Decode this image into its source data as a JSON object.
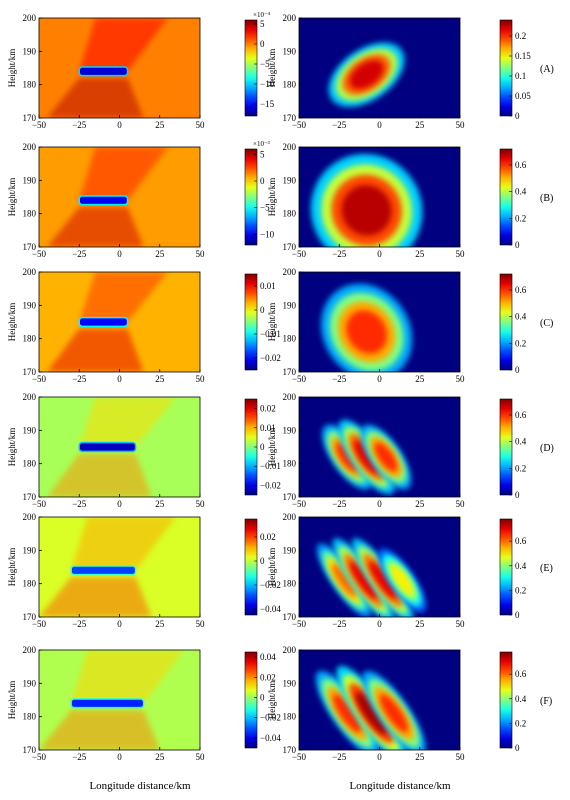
{
  "figure": {
    "x_label": "Longitude distance/km",
    "y_label": "Height/km"
  },
  "chart_data": [
    {
      "type": "heatmap",
      "id": "A-left",
      "row_label": "",
      "xlim": [
        -50,
        50
      ],
      "ylim": [
        170,
        200
      ],
      "x_ticks": [
        "−50",
        "−25",
        "0",
        "25",
        "50"
      ],
      "y_ticks": [
        "170",
        "180",
        "190",
        "200"
      ],
      "colorbar": {
        "exponent": "×10⁻⁴",
        "ticks": [
          "5",
          "0",
          "−5",
          "−10",
          "−15"
        ],
        "min": -18,
        "max": 6
      },
      "field": "slab",
      "background": 0,
      "slab": {
        "x0": -25,
        "x1": 5,
        "y": 184,
        "value": -16
      },
      "stripes": []
    },
    {
      "type": "heatmap",
      "id": "A-right",
      "row_label": "(A)",
      "xlim": [
        -50,
        50
      ],
      "ylim": [
        170,
        200
      ],
      "x_ticks": [
        "−50",
        "−25",
        "0",
        "25",
        "50"
      ],
      "y_ticks": [
        "170",
        "180",
        "190",
        "200"
      ],
      "colorbar": {
        "exponent": "",
        "ticks": [
          "0.2",
          "0.15",
          "0.1",
          "0.05",
          "0"
        ],
        "min": 0,
        "max": 0.24
      },
      "field": "blobs",
      "background": 0,
      "blobs": [
        {
          "x": -8,
          "y": 183,
          "value": 0.22,
          "rx": 14,
          "ry": 4
        }
      ]
    },
    {
      "type": "heatmap",
      "id": "B-left",
      "row_label": "",
      "xlim": [
        -50,
        50
      ],
      "ylim": [
        170,
        200
      ],
      "x_ticks": [
        "−50",
        "−25",
        "0",
        "25",
        "50"
      ],
      "y_ticks": [
        "170",
        "180",
        "190",
        "200"
      ],
      "colorbar": {
        "exponent": "×10⁻³",
        "ticks": [
          "5",
          "0",
          "−5",
          "−10"
        ],
        "min": -12,
        "max": 6
      },
      "field": "slab",
      "background": 1,
      "slab": {
        "x0": -25,
        "x1": 5,
        "y": 184,
        "value": -10
      },
      "stripes": []
    },
    {
      "type": "heatmap",
      "id": "B-right",
      "row_label": "(B)",
      "xlim": [
        -50,
        50
      ],
      "ylim": [
        170,
        200
      ],
      "x_ticks": [
        "−50",
        "−25",
        "0",
        "25",
        "50"
      ],
      "y_ticks": [
        "170",
        "180",
        "190",
        "200"
      ],
      "colorbar": {
        "exponent": "",
        "ticks": [
          "0.6",
          "0.4",
          "0.2",
          "0"
        ],
        "min": 0,
        "max": 0.72
      },
      "field": "blobs",
      "background": 0,
      "blobs": [
        {
          "x": -8,
          "y": 181,
          "value": 0.68,
          "rx": 18,
          "ry": 9
        }
      ]
    },
    {
      "type": "heatmap",
      "id": "C-left",
      "row_label": "",
      "xlim": [
        -50,
        50
      ],
      "ylim": [
        170,
        200
      ],
      "x_ticks": [
        "−50",
        "−25",
        "0",
        "25",
        "50"
      ],
      "y_ticks": [
        "170",
        "180",
        "190",
        "200"
      ],
      "colorbar": {
        "exponent": "",
        "ticks": [
          "0.01",
          "0",
          "−0.01",
          "−0.02"
        ],
        "min": -0.025,
        "max": 0.015
      },
      "field": "slab",
      "background": 0.003,
      "slab": {
        "x0": -25,
        "x1": 5,
        "y": 185,
        "value": -0.02
      },
      "stripes": []
    },
    {
      "type": "heatmap",
      "id": "C-right",
      "row_label": "(C)",
      "xlim": [
        -50,
        50
      ],
      "ylim": [
        170,
        200
      ],
      "x_ticks": [
        "−50",
        "−25",
        "0",
        "25",
        "50"
      ],
      "y_ticks": [
        "170",
        "180",
        "190",
        "200"
      ],
      "colorbar": {
        "exponent": "",
        "ticks": [
          "0.6",
          "0.4",
          "0.2",
          "0"
        ],
        "min": 0,
        "max": 0.72
      },
      "field": "blobs",
      "background": 0,
      "blobs": [
        {
          "x": -8,
          "y": 182,
          "value": 0.6,
          "rx": 14,
          "ry": 8
        }
      ]
    },
    {
      "type": "heatmap",
      "id": "D-left",
      "row_label": "",
      "xlim": [
        -50,
        50
      ],
      "ylim": [
        170,
        200
      ],
      "x_ticks": [
        "−50",
        "−25",
        "0",
        "25",
        "50"
      ],
      "y_ticks": [
        "170",
        "180",
        "190",
        "200"
      ],
      "colorbar": {
        "exponent": "",
        "ticks": [
          "0.02",
          "0.01",
          "0",
          "−0.01",
          "−0.02"
        ],
        "min": -0.025,
        "max": 0.025
      },
      "field": "slab",
      "background": 0.002,
      "slab": {
        "x0": -25,
        "x1": 10,
        "y": 185,
        "value": -0.022
      },
      "stripes": []
    },
    {
      "type": "heatmap",
      "id": "D-right",
      "row_label": "(D)",
      "xlim": [
        -50,
        50
      ],
      "ylim": [
        170,
        200
      ],
      "x_ticks": [
        "−50",
        "−25",
        "0",
        "25",
        "50"
      ],
      "y_ticks": [
        "170",
        "180",
        "190",
        "200"
      ],
      "colorbar": {
        "exponent": "",
        "ticks": [
          "0.6",
          "0.4",
          "0.2",
          "0"
        ],
        "min": 0,
        "max": 0.72
      },
      "field": "blobs",
      "background": 0,
      "blobs": [
        {
          "x": -20,
          "y": 182,
          "value": 0.6,
          "rx": 5,
          "ry": 6
        },
        {
          "x": -8,
          "y": 182,
          "value": 0.65,
          "rx": 5,
          "ry": 7
        },
        {
          "x": 4,
          "y": 182,
          "value": 0.6,
          "rx": 5,
          "ry": 6
        }
      ]
    },
    {
      "type": "heatmap",
      "id": "E-left",
      "row_label": "",
      "xlim": [
        -50,
        50
      ],
      "ylim": [
        170,
        200
      ],
      "x_ticks": [
        "−50",
        "−25",
        "0",
        "25",
        "50"
      ],
      "y_ticks": [
        "170",
        "180",
        "190",
        "200"
      ],
      "colorbar": {
        "exponent": "",
        "ticks": [
          "0.02",
          "0",
          "−0.02",
          "−0.04"
        ],
        "min": -0.045,
        "max": 0.035
      },
      "field": "slab",
      "background": 0.002,
      "slab": {
        "x0": -30,
        "x1": 10,
        "y": 184,
        "value": -0.03
      },
      "stripes": []
    },
    {
      "type": "heatmap",
      "id": "E-right",
      "row_label": "(E)",
      "xlim": [
        -50,
        50
      ],
      "ylim": [
        170,
        200
      ],
      "x_ticks": [
        "−50",
        "−25",
        "0",
        "25",
        "50"
      ],
      "y_ticks": [
        "170",
        "180",
        "190",
        "200"
      ],
      "colorbar": {
        "exponent": "",
        "ticks": [
          "0.6",
          "0.4",
          "0.2",
          "0"
        ],
        "min": 0,
        "max": 0.78
      },
      "field": "blobs",
      "background": 0,
      "blobs": [
        {
          "x": -22,
          "y": 181,
          "value": 0.6,
          "rx": 4,
          "ry": 7
        },
        {
          "x": -10,
          "y": 181,
          "value": 0.7,
          "rx": 4,
          "ry": 8
        },
        {
          "x": 2,
          "y": 181,
          "value": 0.7,
          "rx": 4,
          "ry": 8
        },
        {
          "x": 14,
          "y": 181,
          "value": 0.5,
          "rx": 4,
          "ry": 6
        }
      ]
    },
    {
      "type": "heatmap",
      "id": "F-left",
      "row_label": "",
      "xlim": [
        -50,
        50
      ],
      "ylim": [
        170,
        200
      ],
      "x_ticks": [
        "−50",
        "−25",
        "0",
        "25",
        "50"
      ],
      "y_ticks": [
        "170",
        "180",
        "190",
        "200"
      ],
      "colorbar": {
        "exponent": "",
        "ticks": [
          "0.04",
          "0.02",
          "0",
          "−0.02",
          "−0.04"
        ],
        "min": -0.05,
        "max": 0.045
      },
      "field": "slab",
      "background": 0.002,
      "slab": {
        "x0": -30,
        "x1": 15,
        "y": 184,
        "value": -0.035
      },
      "stripes": []
    },
    {
      "type": "heatmap",
      "id": "F-right",
      "row_label": "(F)",
      "xlim": [
        -50,
        50
      ],
      "ylim": [
        170,
        200
      ],
      "x_ticks": [
        "−50",
        "−25",
        "0",
        "25",
        "50"
      ],
      "y_ticks": [
        "170",
        "180",
        "190",
        "200"
      ],
      "colorbar": {
        "exponent": "",
        "ticks": [
          "0.6",
          "0.4",
          "0.2",
          "0"
        ],
        "min": 0,
        "max": 0.78
      },
      "field": "blobs",
      "background": 0,
      "blobs": [
        {
          "x": -20,
          "y": 181,
          "value": 0.65,
          "rx": 5,
          "ry": 8
        },
        {
          "x": -5,
          "y": 181,
          "value": 0.75,
          "rx": 5,
          "ry": 9
        },
        {
          "x": 9,
          "y": 181,
          "value": 0.65,
          "rx": 5,
          "ry": 8
        }
      ]
    }
  ]
}
